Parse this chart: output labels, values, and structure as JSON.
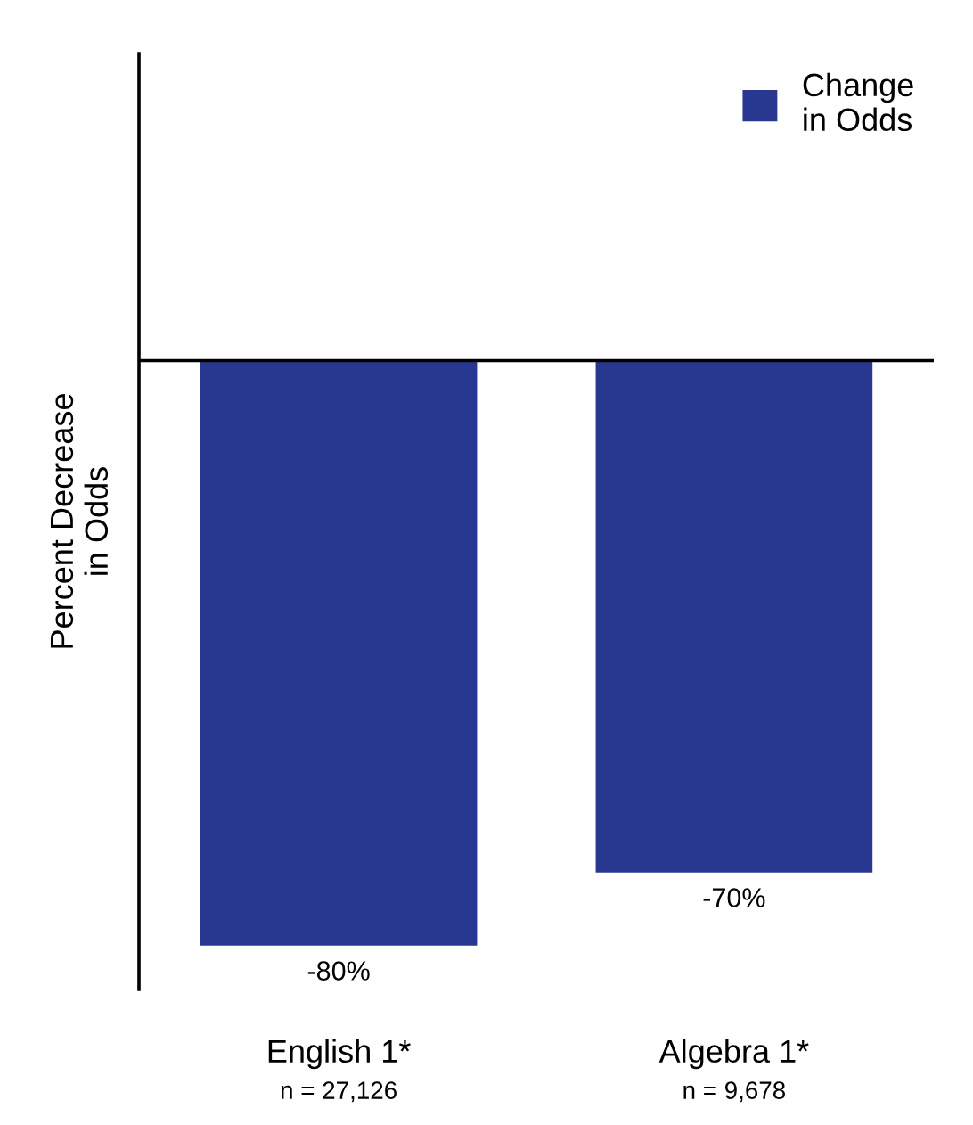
{
  "chart_data": {
    "type": "bar",
    "ylabel": "Percent Decrease\nin Odds",
    "categories": [
      "English 1*",
      "Algebra 1*"
    ],
    "series": [
      {
        "name": "Change\nin Odds",
        "color": "#283891",
        "values": [
          -80,
          -70
        ],
        "value_labels": [
          "-80%",
          "-70%"
        ]
      }
    ],
    "ylim": [
      -86,
      42
    ],
    "legend": "top right",
    "grid": false,
    "annotations": [
      "n = 27,126",
      "n = 9,678"
    ]
  }
}
